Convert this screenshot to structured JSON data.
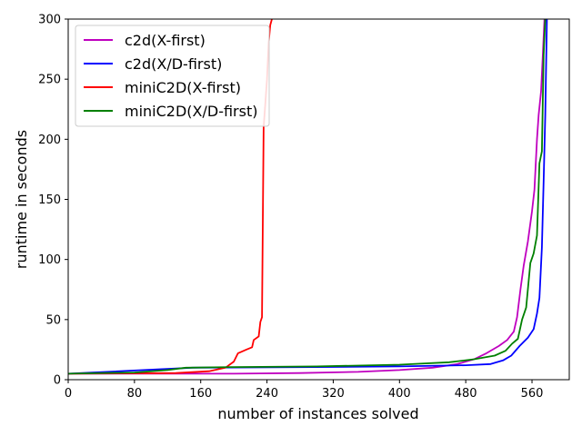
{
  "chart_data": {
    "type": "line",
    "xlabel": "number of instances solved",
    "ylabel": "runtime in seconds",
    "xlim": [
      0,
      605
    ],
    "ylim": [
      0,
      300
    ],
    "xticks": [
      "0",
      "80",
      "160",
      "240",
      "320",
      "400",
      "480",
      "560"
    ],
    "yticks": [
      "0",
      "50",
      "100",
      "150",
      "200",
      "250",
      "300"
    ],
    "legend_position": "top-left",
    "grid": false,
    "series": [
      {
        "name": "c2d(X-first)",
        "color": "#bf00bf",
        "points": [
          [
            0,
            5
          ],
          [
            100,
            5
          ],
          [
            200,
            5
          ],
          [
            280,
            5.5
          ],
          [
            350,
            6.5
          ],
          [
            400,
            8
          ],
          [
            440,
            10
          ],
          [
            470,
            13
          ],
          [
            490,
            17
          ],
          [
            505,
            22
          ],
          [
            520,
            28
          ],
          [
            530,
            33
          ],
          [
            538,
            40
          ],
          [
            542,
            52
          ],
          [
            546,
            75
          ],
          [
            550,
            95
          ],
          [
            555,
            115
          ],
          [
            560,
            140
          ],
          [
            563,
            158
          ],
          [
            566,
            200
          ],
          [
            568,
            220
          ],
          [
            571,
            240
          ],
          [
            573,
            270
          ],
          [
            575,
            300
          ]
        ]
      },
      {
        "name": "c2d(X/D-first)",
        "color": "#0000ff",
        "points": [
          [
            0,
            5
          ],
          [
            150,
            10
          ],
          [
            300,
            10.5
          ],
          [
            400,
            11
          ],
          [
            480,
            12
          ],
          [
            510,
            13
          ],
          [
            525,
            16
          ],
          [
            535,
            20
          ],
          [
            545,
            28
          ],
          [
            555,
            35
          ],
          [
            562,
            42
          ],
          [
            566,
            55
          ],
          [
            569,
            68
          ],
          [
            572,
            110
          ],
          [
            574,
            165
          ],
          [
            576,
            220
          ],
          [
            578,
            300
          ]
        ]
      },
      {
        "name": "miniC2D(X-first)",
        "color": "#ff0000",
        "points": [
          [
            0,
            5
          ],
          [
            130,
            5.5
          ],
          [
            170,
            7
          ],
          [
            190,
            10
          ],
          [
            200,
            15
          ],
          [
            205,
            22
          ],
          [
            215,
            25
          ],
          [
            222,
            27
          ],
          [
            224,
            33
          ],
          [
            230,
            36
          ],
          [
            232,
            48
          ],
          [
            234,
            52
          ],
          [
            236,
            210
          ],
          [
            238,
            230
          ],
          [
            240,
            250
          ],
          [
            242,
            280
          ],
          [
            244,
            295
          ],
          [
            246,
            300
          ]
        ]
      },
      {
        "name": "miniC2D(X/D-first)",
        "color": "#008000",
        "points": [
          [
            0,
            5
          ],
          [
            80,
            6
          ],
          [
            120,
            8
          ],
          [
            142,
            10
          ],
          [
            200,
            10.5
          ],
          [
            300,
            11
          ],
          [
            400,
            12.5
          ],
          [
            460,
            14.5
          ],
          [
            490,
            17
          ],
          [
            515,
            20
          ],
          [
            528,
            24
          ],
          [
            536,
            30
          ],
          [
            543,
            34
          ],
          [
            548,
            50
          ],
          [
            553,
            60
          ],
          [
            558,
            97
          ],
          [
            562,
            105
          ],
          [
            566,
            120
          ],
          [
            569,
            180
          ],
          [
            572,
            190
          ],
          [
            574,
            270
          ],
          [
            576,
            300
          ]
        ]
      }
    ]
  }
}
